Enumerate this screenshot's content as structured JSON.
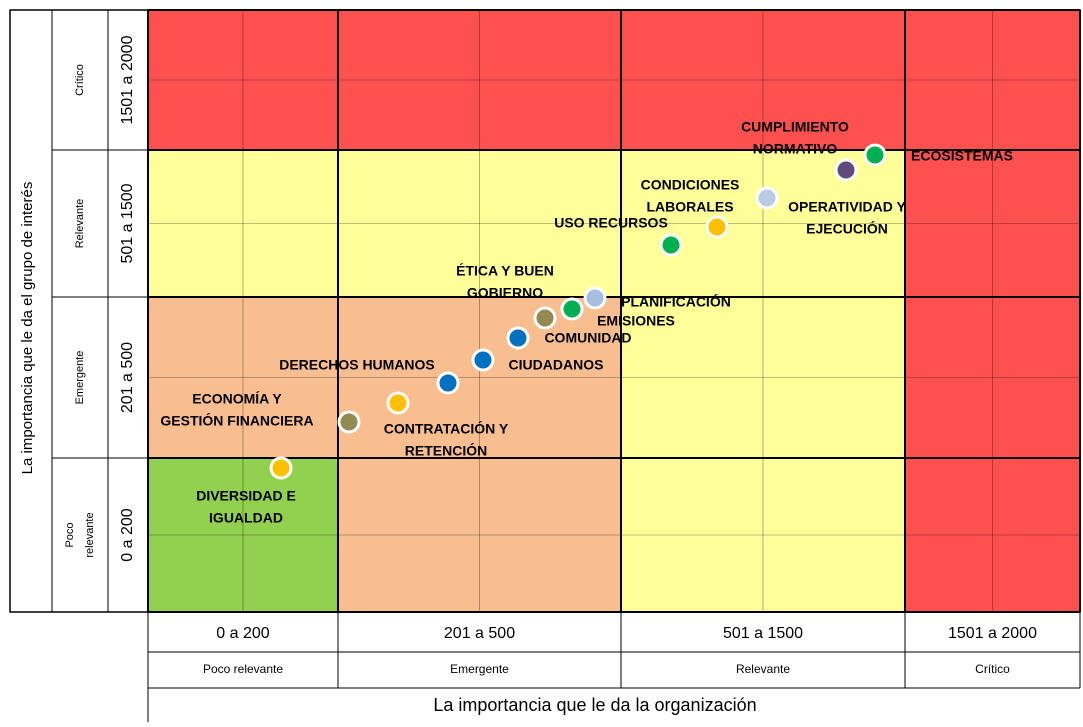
{
  "y_axis_title": "La importancia que le da el grupo de interés",
  "x_axis_title": "La importancia que le da la organización",
  "rows": [
    {
      "name": [
        "Crítico"
      ],
      "range": "1501 a 2000"
    },
    {
      "name": [
        "Relevante"
      ],
      "range": "501 a 1500"
    },
    {
      "name": [
        "Emergente"
      ],
      "range": "201 a  500"
    },
    {
      "name": [
        "Poco",
        "relevante"
      ],
      "range": "0 a 200"
    }
  ],
  "columns": [
    {
      "name": "Poco relevante",
      "range": "0 a 200"
    },
    {
      "name": "Emergente",
      "range": "201 a  500"
    },
    {
      "name": "Relevante",
      "range": "501 a 1500"
    },
    {
      "name": "Crítico",
      "range": "1501 a 2000"
    }
  ],
  "points": [
    {
      "label": [
        "DIVERSIDAD E",
        "IGUALDAD"
      ],
      "color": "#ffc000"
    },
    {
      "label": [
        "ECONOMÍA  Y",
        "GESTIÓN FINANCIERA"
      ],
      "color": "#938953"
    },
    {
      "label": [
        "CONTRATACIÓN Y",
        "RETENCIÓN"
      ],
      "color": "#ffc000"
    },
    {
      "label": [
        "DERECHOS HUMANOS"
      ],
      "color": "#0070c0"
    },
    {
      "label": [
        "CIUDADANOS"
      ],
      "color": "#0070c0"
    },
    {
      "label": [
        "COMUNIDAD"
      ],
      "color": "#0070c0"
    },
    {
      "label": [
        "ÉTICA Y BUEN",
        "GOBIERNO"
      ],
      "color": "#938953"
    },
    {
      "label": [
        "EMISIONES"
      ],
      "color": "#00b050"
    },
    {
      "label": [
        "PLANIFICACIÓN"
      ],
      "color": "#a6bee0"
    },
    {
      "label": [
        "USO  RECURSOS"
      ],
      "color": "#00b050"
    },
    {
      "label": [
        "CONDICIONES",
        "LABORALES"
      ],
      "color": "#ffc000"
    },
    {
      "label": [
        "OPERATIVIDAD Y",
        "EJECUCIÓN"
      ],
      "color": "#b8cce4"
    },
    {
      "label": [
        "CUMPLIMIENTO",
        "NORMATIVO"
      ],
      "color": "#604a7b"
    },
    {
      "label": [
        "ECOSISTEMAS"
      ],
      "color": "#00b050"
    }
  ]
}
